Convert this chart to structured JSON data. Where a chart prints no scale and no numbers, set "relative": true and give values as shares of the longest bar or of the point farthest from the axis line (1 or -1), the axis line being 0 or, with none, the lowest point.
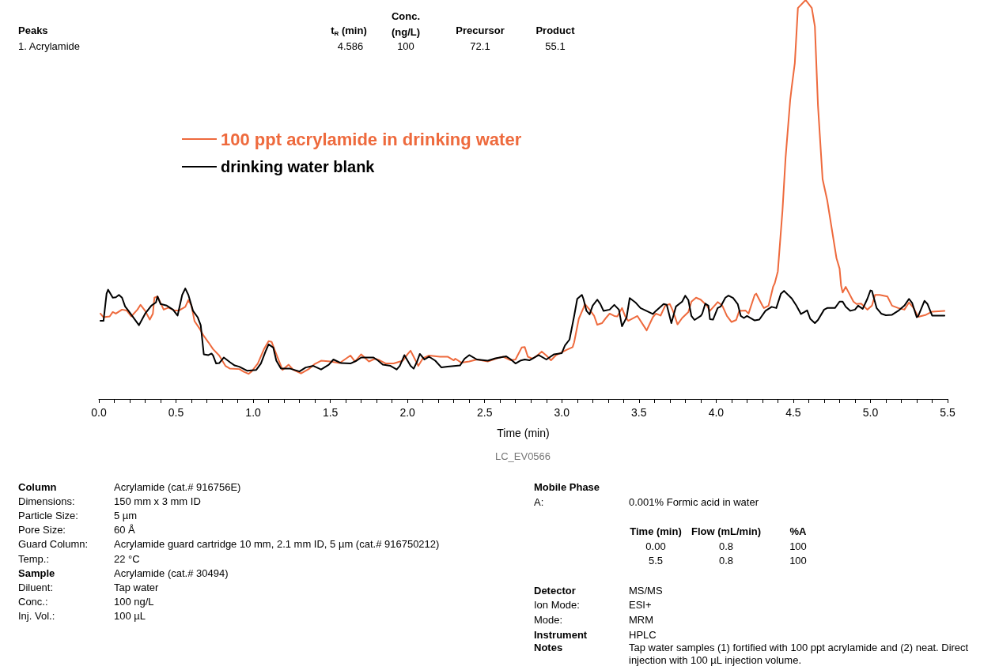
{
  "chart_data": {
    "type": "line",
    "relative": true,
    "xlabel": "Time (min)",
    "legend": "top left",
    "grid": false,
    "marker": "none",
    "line_style": "solid",
    "xlim": [
      0,
      5.5
    ],
    "xticks": [
      {
        "value": 0,
        "label": "0.0"
      },
      {
        "value": 0.1,
        "label": null
      },
      {
        "value": 0.2,
        "label": null
      },
      {
        "value": 0.3,
        "label": null
      },
      {
        "value": 0.4,
        "label": null
      },
      {
        "value": 0.5,
        "label": "0.5"
      },
      {
        "value": 0.6,
        "label": null
      },
      {
        "value": 0.7,
        "label": null
      },
      {
        "value": 0.8,
        "label": null
      },
      {
        "value": 0.9,
        "label": null
      },
      {
        "value": 1,
        "label": "1.0"
      },
      {
        "value": 1.1,
        "label": null
      },
      {
        "value": 1.2,
        "label": null
      },
      {
        "value": 1.3,
        "label": null
      },
      {
        "value": 1.4,
        "label": null
      },
      {
        "value": 1.5,
        "label": "1.5"
      },
      {
        "value": 1.6,
        "label": null
      },
      {
        "value": 1.7,
        "label": null
      },
      {
        "value": 1.8,
        "label": null
      },
      {
        "value": 1.9,
        "label": null
      },
      {
        "value": 2,
        "label": "2.0"
      },
      {
        "value": 2.1,
        "label": null
      },
      {
        "value": 2.2,
        "label": null
      },
      {
        "value": 2.3,
        "label": null
      },
      {
        "value": 2.4,
        "label": null
      },
      {
        "value": 2.5,
        "label": "2.5"
      },
      {
        "value": 2.6,
        "label": null
      },
      {
        "value": 2.7,
        "label": null
      },
      {
        "value": 2.8,
        "label": null
      },
      {
        "value": 2.9,
        "label": null
      },
      {
        "value": 3,
        "label": "3.0"
      },
      {
        "value": 3.1,
        "label": null
      },
      {
        "value": 3.2,
        "label": null
      },
      {
        "value": 3.3,
        "label": null
      },
      {
        "value": 3.4,
        "label": null
      },
      {
        "value": 3.5,
        "label": "3.5"
      },
      {
        "value": 3.6,
        "label": null
      },
      {
        "value": 3.7,
        "label": null
      },
      {
        "value": 3.8,
        "label": null
      },
      {
        "value": 3.9,
        "label": null
      },
      {
        "value": 4,
        "label": "4.0"
      },
      {
        "value": 4.1,
        "label": null
      },
      {
        "value": 4.2,
        "label": null
      },
      {
        "value": 4.3,
        "label": null
      },
      {
        "value": 4.4,
        "label": null
      },
      {
        "value": 4.5,
        "label": "4.5"
      },
      {
        "value": 4.6,
        "label": null
      },
      {
        "value": 4.7,
        "label": null
      },
      {
        "value": 4.8,
        "label": null
      },
      {
        "value": 4.9,
        "label": null
      },
      {
        "value": 5,
        "label": "5.0"
      },
      {
        "value": 5.1,
        "label": null
      },
      {
        "value": 5.2,
        "label": null
      },
      {
        "value": 5.3,
        "label": null
      },
      {
        "value": 5.4,
        "label": null
      },
      {
        "value": 5.5,
        "label": "5.5"
      }
    ],
    "series": [
      {
        "name": "100 ppt acrylamide in drinking water",
        "color": "#ee6a3d",
        "x": [
          0.01,
          0.03,
          0.07,
          0.09,
          0.11,
          0.15,
          0.18,
          0.21,
          0.25,
          0.27,
          0.3,
          0.33,
          0.35,
          0.36,
          0.38,
          0.42,
          0.45,
          0.49,
          0.52,
          0.56,
          0.58,
          0.6,
          0.62,
          0.65,
          0.68,
          0.71,
          0.74,
          0.78,
          0.82,
          0.85,
          0.91,
          0.94,
          0.97,
          0.99,
          1.03,
          1.07,
          1.1,
          1.12,
          1.14,
          1.19,
          1.23,
          1.26,
          1.31,
          1.36,
          1.4,
          1.44,
          1.5,
          1.56,
          1.63,
          1.66,
          1.7,
          1.75,
          1.79,
          1.82,
          1.86,
          1.91,
          1.97,
          2.0,
          2.02,
          2.04,
          2.07,
          2.1,
          2.14,
          2.21,
          2.26,
          2.3,
          2.31,
          2.35,
          2.4,
          2.45,
          2.52,
          2.58,
          2.62,
          2.67,
          2.7,
          2.74,
          2.76,
          2.78,
          2.81,
          2.84,
          2.87,
          2.9,
          2.93,
          2.96,
          3.01,
          3.03,
          3.07,
          3.08,
          3.11,
          3.14,
          3.15,
          3.18,
          3.21,
          3.23,
          3.26,
          3.29,
          3.31,
          3.34,
          3.36,
          3.39,
          3.41,
          3.43,
          3.49,
          3.54,
          3.55,
          3.59,
          3.61,
          3.64,
          3.67,
          3.7,
          3.72,
          3.75,
          3.78,
          3.82,
          3.84,
          3.87,
          3.9,
          3.94,
          3.96,
          3.99,
          4.01,
          4.04,
          4.07,
          4.1,
          4.13,
          4.15,
          4.19,
          4.21,
          4.25,
          4.26,
          4.3,
          4.31,
          4.34,
          4.37,
          4.38,
          4.4,
          4.43,
          4.45,
          4.48,
          4.49,
          4.51,
          4.53,
          4.58,
          4.62,
          4.64,
          4.66,
          4.69,
          4.72,
          4.78,
          4.8,
          4.81,
          4.82,
          4.84,
          4.89,
          4.91,
          4.94,
          4.98,
          5.01,
          5.03,
          5.06,
          5.11,
          5.14,
          5.18,
          5.22,
          5.25,
          5.28,
          5.31,
          5.36,
          5.4,
          5.48
        ],
        "values": [
          0.214,
          0.205,
          0.207,
          0.218,
          0.214,
          0.224,
          0.222,
          0.207,
          0.224,
          0.236,
          0.221,
          0.199,
          0.214,
          0.254,
          0.257,
          0.224,
          0.229,
          0.222,
          0.222,
          0.231,
          0.248,
          0.234,
          0.195,
          0.178,
          0.158,
          0.142,
          0.125,
          0.109,
          0.083,
          0.076,
          0.075,
          0.068,
          0.063,
          0.069,
          0.089,
          0.125,
          0.145,
          0.143,
          0.122,
          0.073,
          0.086,
          0.073,
          0.064,
          0.075,
          0.088,
          0.096,
          0.094,
          0.09,
          0.109,
          0.094,
          0.112,
          0.094,
          0.101,
          0.097,
          0.089,
          0.089,
          0.096,
          0.112,
          0.121,
          0.106,
          0.083,
          0.102,
          0.109,
          0.106,
          0.106,
          0.097,
          0.101,
          0.091,
          0.094,
          0.099,
          0.094,
          0.102,
          0.106,
          0.097,
          0.099,
          0.129,
          0.13,
          0.106,
          0.101,
          0.109,
          0.119,
          0.109,
          0.097,
          0.109,
          0.119,
          0.123,
          0.13,
          0.142,
          0.201,
          0.228,
          0.238,
          0.224,
          0.208,
          0.186,
          0.19,
          0.205,
          0.214,
          0.208,
          0.207,
          0.228,
          0.208,
          0.196,
          0.208,
          0.178,
          0.172,
          0.205,
          0.214,
          0.209,
          0.234,
          0.238,
          0.221,
          0.187,
          0.203,
          0.218,
          0.244,
          0.254,
          0.249,
          0.234,
          0.221,
          0.234,
          0.243,
          0.234,
          0.208,
          0.193,
          0.198,
          0.221,
          0.222,
          0.214,
          0.261,
          0.264,
          0.234,
          0.228,
          0.234,
          0.282,
          0.29,
          0.32,
          0.472,
          0.604,
          0.749,
          0.782,
          0.842,
          0.98,
          1,
          0.98,
          0.934,
          0.736,
          0.551,
          0.498,
          0.353,
          0.327,
          0.284,
          0.267,
          0.281,
          0.244,
          0.238,
          0.239,
          0.224,
          0.234,
          0.261,
          0.261,
          0.257,
          0.234,
          0.228,
          0.224,
          0.242,
          0.228,
          0.206,
          0.211,
          0.219,
          0.221
        ]
      },
      {
        "name": "drinking water blank",
        "color": "#000000",
        "x": [
          0.01,
          0.03,
          0.05,
          0.06,
          0.09,
          0.11,
          0.13,
          0.15,
          0.17,
          0.19,
          0.26,
          0.3,
          0.34,
          0.37,
          0.38,
          0.4,
          0.44,
          0.48,
          0.51,
          0.54,
          0.56,
          0.58,
          0.61,
          0.64,
          0.66,
          0.68,
          0.71,
          0.73,
          0.74,
          0.76,
          0.78,
          0.81,
          0.85,
          0.88,
          0.91,
          0.96,
          1.02,
          1.05,
          1.08,
          1.1,
          1.13,
          1.15,
          1.18,
          1.24,
          1.3,
          1.34,
          1.39,
          1.44,
          1.49,
          1.52,
          1.57,
          1.63,
          1.67,
          1.7,
          1.78,
          1.81,
          1.84,
          1.89,
          1.93,
          1.95,
          1.98,
          2.02,
          2.04,
          2.06,
          2.08,
          2.11,
          2.14,
          2.18,
          2.22,
          2.26,
          2.34,
          2.37,
          2.4,
          2.45,
          2.52,
          2.57,
          2.64,
          2.67,
          2.7,
          2.73,
          2.76,
          2.79,
          2.85,
          2.9,
          2.95,
          3.0,
          3.02,
          3.05,
          3.08,
          3.1,
          3.13,
          3.14,
          3.16,
          3.18,
          3.2,
          3.23,
          3.25,
          3.27,
          3.31,
          3.34,
          3.37,
          3.39,
          3.42,
          3.44,
          3.48,
          3.51,
          3.59,
          3.61,
          3.66,
          3.68,
          3.71,
          3.74,
          3.78,
          3.8,
          3.82,
          3.84,
          3.86,
          3.9,
          3.91,
          3.93,
          3.95,
          3.96,
          3.98,
          4.01,
          4.03,
          4.06,
          4.08,
          4.11,
          4.14,
          4.16,
          4.18,
          4.2,
          4.25,
          4.28,
          4.32,
          4.36,
          4.39,
          4.42,
          4.44,
          4.49,
          4.52,
          4.55,
          4.59,
          4.61,
          4.64,
          4.66,
          4.7,
          4.72,
          4.77,
          4.8,
          4.82,
          4.84,
          4.87,
          4.9,
          4.92,
          4.95,
          4.98,
          5.0,
          5.01,
          5.04,
          5.07,
          5.1,
          5.14,
          5.18,
          5.22,
          5.25,
          5.27,
          5.3,
          5.31,
          5.35,
          5.37,
          5.4,
          5.48
        ],
        "values": [
          0.196,
          0.196,
          0.264,
          0.274,
          0.254,
          0.255,
          0.261,
          0.254,
          0.232,
          0.222,
          0.185,
          0.214,
          0.234,
          0.242,
          0.257,
          0.238,
          0.234,
          0.224,
          0.209,
          0.261,
          0.277,
          0.261,
          0.221,
          0.205,
          0.185,
          0.112,
          0.11,
          0.114,
          0.109,
          0.089,
          0.09,
          0.104,
          0.092,
          0.084,
          0.081,
          0.071,
          0.073,
          0.089,
          0.119,
          0.137,
          0.129,
          0.096,
          0.076,
          0.076,
          0.069,
          0.079,
          0.083,
          0.074,
          0.086,
          0.099,
          0.09,
          0.089,
          0.096,
          0.104,
          0.104,
          0.096,
          0.086,
          0.083,
          0.074,
          0.083,
          0.11,
          0.083,
          0.076,
          0.092,
          0.113,
          0.099,
          0.106,
          0.096,
          0.079,
          0.081,
          0.084,
          0.101,
          0.11,
          0.099,
          0.096,
          0.102,
          0.107,
          0.099,
          0.089,
          0.096,
          0.099,
          0.097,
          0.11,
          0.099,
          0.112,
          0.115,
          0.134,
          0.149,
          0.208,
          0.251,
          0.261,
          0.251,
          0.221,
          0.212,
          0.234,
          0.249,
          0.238,
          0.221,
          0.224,
          0.236,
          0.224,
          0.182,
          0.205,
          0.253,
          0.241,
          0.228,
          0.213,
          0.221,
          0.238,
          0.236,
          0.19,
          0.232,
          0.244,
          0.259,
          0.248,
          0.208,
          0.198,
          0.208,
          0.214,
          0.239,
          0.234,
          0.2,
          0.199,
          0.228,
          0.232,
          0.254,
          0.259,
          0.253,
          0.238,
          0.208,
          0.203,
          0.208,
          0.197,
          0.199,
          0.221,
          0.231,
          0.228,
          0.264,
          0.271,
          0.252,
          0.234,
          0.213,
          0.222,
          0.201,
          0.19,
          0.198,
          0.224,
          0.228,
          0.228,
          0.244,
          0.244,
          0.231,
          0.221,
          0.224,
          0.234,
          0.226,
          0.251,
          0.272,
          0.271,
          0.228,
          0.214,
          0.21,
          0.211,
          0.221,
          0.234,
          0.251,
          0.241,
          0.205,
          0.208,
          0.246,
          0.238,
          0.209,
          0.209
        ]
      }
    ],
    "annotations": [
      "Peaks",
      "1. Acrylamide",
      "t$_{R}$ (min)",
      "Conc.\n(ng/L)",
      "Precursor",
      "Product",
      "4.586",
      "100",
      "72.1",
      "55.1",
      "LC_EV0566",
      "Column",
      "Acrylamide (cat.# 916756E)",
      "Dimensions:",
      "150 mm x 3 mm ID",
      "Particle Size:",
      "5 µm",
      "Pore Size:",
      "60 Å",
      "Guard Column:",
      "Acrylamide guard cartridge 10 mm, 2.1 mm ID, 5 µm (cat.# 916750212)",
      "Temp.:",
      "22 °C",
      "Sample",
      "Acrylamide (cat.# 30494)",
      "Diluent:",
      "Tap water",
      "Conc.:",
      "100 ng/L",
      "Inj. Vol.:",
      "100 µL",
      "Mobile Phase",
      "A:",
      "0.001% Formic acid in water",
      "Time (min)",
      "Flow (mL/min)",
      "%A",
      "0.00",
      "0.8",
      "100",
      "5.5",
      "0.8",
      "100",
      "Detector",
      "MS/MS",
      "Ion Mode:",
      "ESI+",
      "Mode:",
      "MRM",
      "Instrument",
      "HPLC",
      "Notes",
      "Tap water samples (1) fortified with 100 ppt acrylamide and (2) neat. Direct injection with 100 µL injection volume."
    ]
  }
}
